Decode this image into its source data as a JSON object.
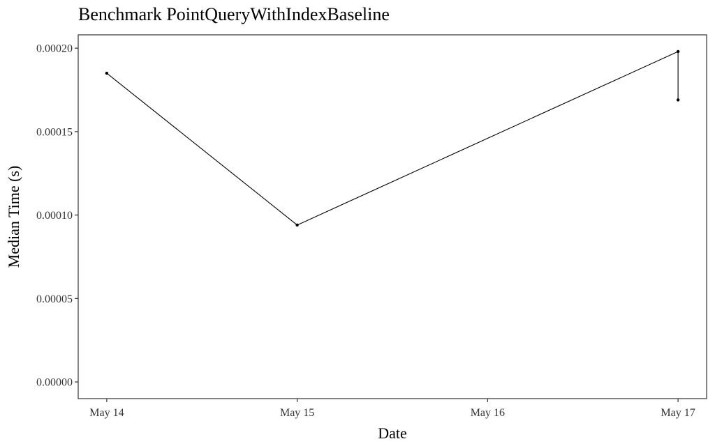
{
  "chart_data": {
    "type": "line",
    "title": "Benchmark PointQueryWithIndexBaseline",
    "xlabel": "Date",
    "ylabel": "Median Time (s)",
    "x_ticks": [
      "May 14",
      "May 15",
      "May 16",
      "May 17"
    ],
    "x_tick_days": [
      14,
      15,
      16,
      17
    ],
    "xlim_days": [
      13.85,
      17.15
    ],
    "y_ticks": [
      "0.00000",
      "0.00005",
      "0.00010",
      "0.00015",
      "0.00020"
    ],
    "y_tick_values": [
      0,
      5e-05,
      0.0001,
      0.00015,
      0.0002
    ],
    "ylim": [
      -1e-05,
      0.000208
    ],
    "grid": false,
    "legend": "none",
    "colors": {
      "line": "#000000",
      "panel_border": "#333333"
    },
    "series": [
      {
        "points": [
          {
            "x": "May 14",
            "x_day": 14.0,
            "y": 0.000185
          },
          {
            "x": "May 15",
            "x_day": 15.0,
            "y": 9.4e-05
          },
          {
            "x": "May 17",
            "x_day": 17.0,
            "y": 0.000198
          },
          {
            "x": "May 17",
            "x_day": 17.0,
            "y": 0.000169
          }
        ]
      }
    ]
  }
}
